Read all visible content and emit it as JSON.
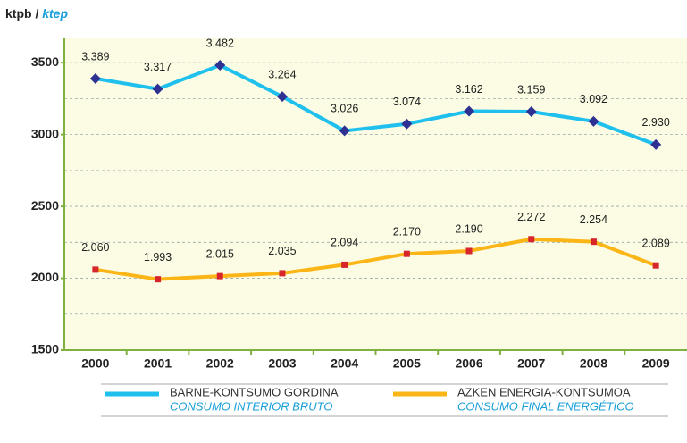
{
  "chart_data": {
    "type": "line",
    "y_label": "ktpb /",
    "y_label_alt": "ktep",
    "categories": [
      "2000",
      "2001",
      "2002",
      "2003",
      "2004",
      "2005",
      "2006",
      "2007",
      "2008",
      "2009"
    ],
    "series": [
      {
        "name": "BARNE-KONTSUMO GORDINA",
        "name_translation": "CONSUMO INTERIOR BRUTO",
        "color": "#1fc0ee",
        "marker_color": "#2e3192",
        "marker": "diamond",
        "values": [
          3389,
          3317,
          3482,
          3264,
          3026,
          3074,
          3162,
          3159,
          3092,
          2930
        ],
        "value_labels": [
          "3.389",
          "3.317",
          "3.482",
          "3.264",
          "3.026",
          "3.074",
          "3.162",
          "3.159",
          "3.092",
          "2.930"
        ]
      },
      {
        "name": "AZKEN ENERGIA-KONTSUMOA",
        "name_translation": "CONSUMO FINAL ENERGÉTICO",
        "color": "#fbb516",
        "marker_color": "#d7262b",
        "marker": "square",
        "values": [
          2060,
          1993,
          2015,
          2035,
          2094,
          2170,
          2190,
          2272,
          2254,
          2089
        ],
        "value_labels": [
          "2.060",
          "1.993",
          "2.015",
          "2.035",
          "2.094",
          "2.170",
          "2.190",
          "2.272",
          "2.254",
          "2.089"
        ]
      }
    ],
    "ylim": [
      1500,
      3675
    ],
    "yticks": [
      1500,
      2000,
      2500,
      3000,
      3500
    ],
    "minor_grid": [
      1750,
      2250,
      2750,
      3250
    ],
    "grid": true
  }
}
